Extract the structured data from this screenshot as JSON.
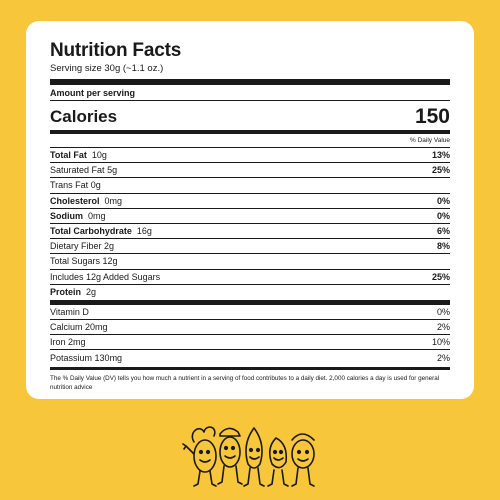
{
  "title": "Nutrition Facts",
  "serving": "Serving size 30g (~1.1 oz.)",
  "amount_per_serving": "Amount per serving",
  "calories": {
    "label": "Calories",
    "value": "150"
  },
  "dv_header": "% Daily Value",
  "nutrients": [
    {
      "name": "Total Fat",
      "amount": "10g",
      "dv": "13%",
      "bold": true
    },
    {
      "name": "Saturated Fat",
      "amount": "5g",
      "dv": "25%",
      "bold": false
    },
    {
      "name": "Trans Fat",
      "amount": "0g",
      "dv": "",
      "bold": false
    },
    {
      "name": "Cholesterol",
      "amount": "0mg",
      "dv": "0%",
      "bold": true
    },
    {
      "name": "Sodium",
      "amount": "0mg",
      "dv": "0%",
      "bold": true
    },
    {
      "name": "Total Carbohydrate",
      "amount": "16g",
      "dv": "6%",
      "bold": true
    },
    {
      "name": "Dietary Fiber",
      "amount": "2g",
      "dv": "8%",
      "bold": false
    },
    {
      "name": "Total Sugars",
      "amount": "12g",
      "dv": "",
      "bold": false
    },
    {
      "name": "Includes 12g Added Sugars",
      "amount": "",
      "dv": "25%",
      "bold": false
    },
    {
      "name": "Protein",
      "amount": "2g",
      "dv": "",
      "bold": true
    }
  ],
  "vitamins": [
    {
      "name": "Vitamin D",
      "amount": "",
      "dv": "0%"
    },
    {
      "name": "Calcium",
      "amount": "20mg",
      "dv": "2%"
    },
    {
      "name": "Iron",
      "amount": "2mg",
      "dv": "10%"
    },
    {
      "name": "Potassium",
      "amount": "130mg",
      "dv": "2%"
    }
  ],
  "footnote": "The % Daily Value (DV) tells you how much a nutrient in a serving of food contributes to a daily diet. 2,000 calories a day is used for general nutrition advice",
  "colors": {
    "background": "#f8c63b",
    "card": "#ffffff",
    "text": "#1a1a1a"
  },
  "illustration": "nut-mascots-illustration"
}
